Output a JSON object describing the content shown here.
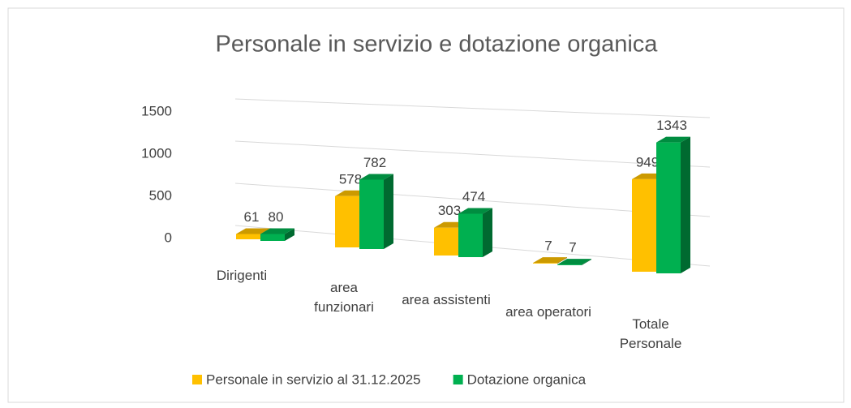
{
  "chart_data": {
    "type": "bar3d",
    "title": "Personale in servizio e dotazione organica",
    "categories": [
      "Dirigenti",
      "area funzionari",
      "area assistenti",
      "area operatori",
      "Totale Personale"
    ],
    "series": [
      {
        "name": "Personale in servizio al 31.12.2025",
        "color": "#FFC000",
        "values": [
          61,
          578,
          303,
          7,
          949
        ]
      },
      {
        "name": "Dotazione organica",
        "color": "#00B050",
        "values": [
          80,
          782,
          474,
          7,
          1343
        ]
      }
    ],
    "ylim": [
      0,
      1500
    ],
    "yticks": [
      0,
      500,
      1000,
      1500
    ],
    "grid": true,
    "legend": "bottom"
  }
}
